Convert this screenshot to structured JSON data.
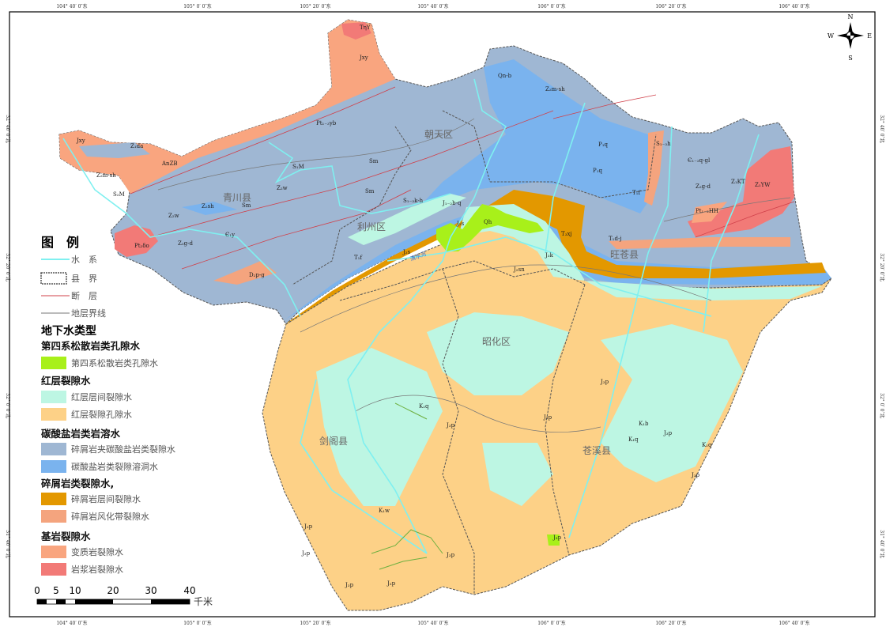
{
  "colors": {
    "quaternary": "#A8F01A",
    "red_interlayer": "#BDF6E3",
    "red_pore": "#FDD187",
    "clastic_carbonate": "#9FB7D3",
    "carbonate_karst": "#7AB3EE",
    "clastic_interlayer": "#E39800",
    "clastic_weathered": "#F4A47E",
    "metamorphic": "#F9A57F",
    "magmatic": "#F27A77",
    "river": "#7FF0F0",
    "fault": "#D0404A"
  },
  "coordinates": {
    "longitudes": [
      "104° 40′ 0″东",
      "105° 0′ 0″东",
      "105° 20′ 0″东",
      "105° 40′ 0″东",
      "106° 0′ 0″东",
      "106° 20′ 0″东",
      "106° 40′ 0″东"
    ],
    "latitudes": [
      "32° 40′ 0″北",
      "32° 20′ 0″北",
      "32° 0′ 0″北",
      "31° 40′ 0″北"
    ]
  },
  "compass": {
    "n": "N",
    "s": "S",
    "e": "E",
    "w": "W"
  },
  "legend": {
    "title": "图　例",
    "lines": [
      {
        "label": "水　系",
        "icon": "river-line"
      },
      {
        "label": "县　界",
        "icon": "county-boundary-box"
      },
      {
        "label": "断　层",
        "icon": "fault-line"
      },
      {
        "label": "地层界线",
        "icon": "stratum-boundary-line"
      }
    ],
    "types_title": "地下水类型",
    "groups": [
      {
        "title": "第四系松散岩类孔隙水",
        "items": [
          {
            "label": "第四系松散岩类孔隙水",
            "color": "#A8F01A"
          }
        ]
      },
      {
        "title": "红层裂隙水",
        "items": [
          {
            "label": "红层层间裂隙水",
            "color": "#BDF6E3"
          },
          {
            "label": "红层裂隙孔隙水",
            "color": "#FDD187"
          }
        ]
      },
      {
        "title": "碳酸盐岩类岩溶水",
        "items": [
          {
            "label": "碎屑岩夹碳酸盐岩类裂隙水",
            "color": "#9FB7D3"
          },
          {
            "label": "碳酸盐岩类裂隙溶洞水",
            "color": "#7AB3EE"
          }
        ]
      },
      {
        "title": "碎屑岩类裂隙水,",
        "items": [
          {
            "label": "碎屑岩层间裂隙水",
            "color": "#E39800"
          },
          {
            "label": "碎屑岩风化带裂隙水",
            "color": "#F4A47E"
          }
        ]
      },
      {
        "title": "基岩裂隙水",
        "items": [
          {
            "label": "变质岩裂隙水",
            "color": "#F9A57F"
          },
          {
            "label": "岩浆岩裂隙水",
            "color": "#F27A77"
          }
        ]
      }
    ]
  },
  "scale": {
    "ticks": [
      "0",
      "5",
      "10",
      "20",
      "30",
      "40"
    ],
    "unit": "千米"
  },
  "counties": [
    "青川县",
    "朝天区",
    "利州区",
    "旺苍县",
    "昭化区",
    "剑阁县",
    "苍溪县"
  ],
  "rivers": [
    "清水河"
  ],
  "geology_labels": [
    "TηY",
    "Jxy",
    "Pt₁₋₃yb",
    "Jxy",
    "Z₁da",
    "AnZB",
    "Z₂m-sh",
    "S₂M",
    "S₁M",
    "Z₂w",
    "Sm",
    "Sm",
    "Z₂sh",
    "Sm",
    "Z₂w",
    "Z₂g-d",
    "Є₁y",
    "Pt₂δo",
    "D₂p-g",
    "S₁₋₃k-h",
    "J₁₋₂b-q",
    "T₁f",
    "J₂s",
    "Qh",
    "J₂s",
    "Qn-b",
    "Z₂m-sh",
    "P₁q",
    "P₁q",
    "S₁₋₃h",
    "Є₁₋₂q-gl",
    "Z₂g-d",
    "T₁f",
    "Z₁KT",
    "Z₁YW",
    "Pt₁₋₂HH",
    "T₃xj",
    "T₁d-j",
    "J₂sn",
    "J₃k",
    "J₃p",
    "K₁q",
    "J₃p",
    "J₃p",
    "K₁b",
    "K₁q",
    "J₃p",
    "K₁q",
    "J₃p",
    "J₃p",
    "K₁w",
    "J₃p",
    "J₃p",
    "J₃p",
    "J₃p",
    "J₃p"
  ]
}
